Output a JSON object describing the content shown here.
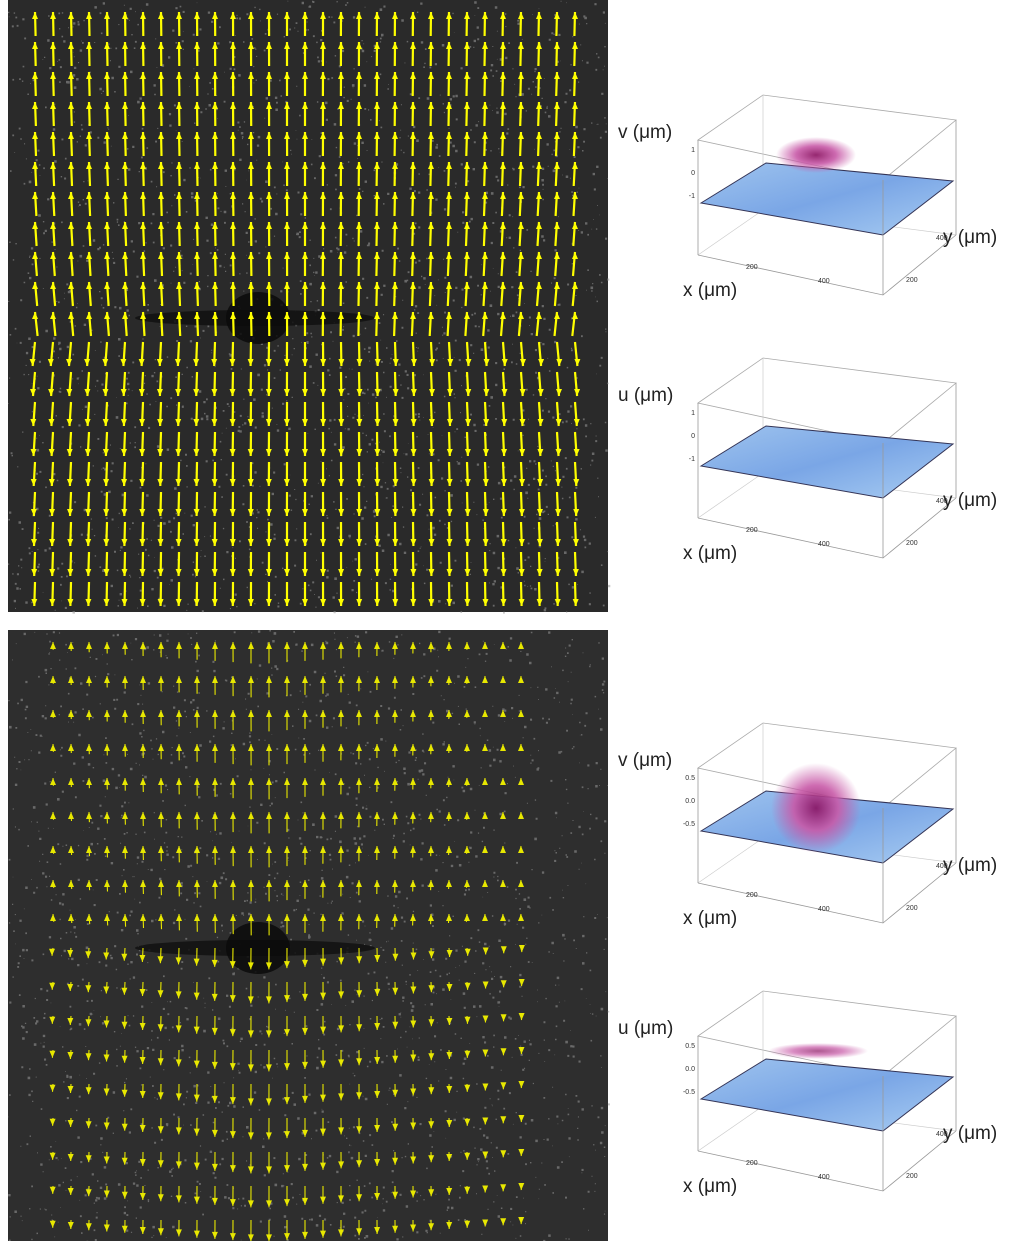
{
  "panels": [
    {
      "plots": [
        {
          "z_label": "v (μm)",
          "x_label": "x (μm)",
          "y_label": "y (μm)",
          "z_ticks": [
            "1",
            "0",
            "-1"
          ],
          "x_ticks": [
            "200",
            "400"
          ],
          "y_ticks": [
            "200",
            "400"
          ]
        },
        {
          "z_label": "u (μm)",
          "x_label": "x (μm)",
          "y_label": "y (μm)",
          "z_ticks": [
            "1",
            "0",
            "-1"
          ],
          "x_ticks": [
            "200",
            "400"
          ],
          "y_ticks": [
            "200",
            "400"
          ]
        }
      ]
    },
    {
      "plots": [
        {
          "z_label": "v (μm)",
          "x_label": "x (μm)",
          "y_label": "y (μm)",
          "z_ticks": [
            "0.5",
            "0.0",
            "-0.5"
          ],
          "x_ticks": [
            "200",
            "400"
          ],
          "y_ticks": [
            "200",
            "400"
          ]
        },
        {
          "z_label": "u (μm)",
          "x_label": "x (μm)",
          "y_label": "y (μm)",
          "z_ticks": [
            "0.5",
            "0.0",
            "-0.5"
          ],
          "x_ticks": [
            "200",
            "400"
          ],
          "y_ticks": [
            "200",
            "400"
          ]
        }
      ]
    }
  ]
}
